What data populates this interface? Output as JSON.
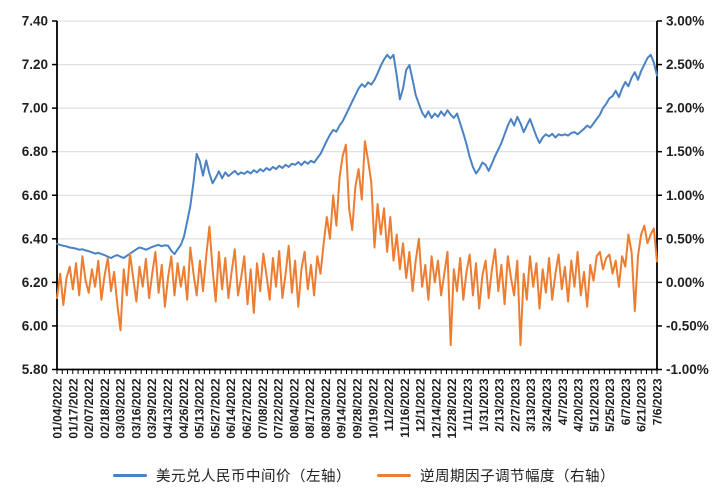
{
  "colors": {
    "series_blue": "#4a82c4",
    "series_orange": "#ED7D31",
    "gridline": "#d9d9d9",
    "axis": "#000000",
    "tick_text": "#1f1f1f"
  },
  "chart_data": {
    "type": "line",
    "title": "",
    "xlabel": "",
    "ylabel_left": "",
    "ylabel_right": "",
    "grid": true,
    "legend_position": "bottom",
    "left_axis": {
      "min": 5.8,
      "max": 7.4,
      "tick_labels": [
        "7.40",
        "7.20",
        "7.00",
        "6.80",
        "6.60",
        "6.40",
        "6.20",
        "6.00",
        "5.80"
      ]
    },
    "right_axis": {
      "min": -1.0,
      "max": 3.0,
      "tick_labels": [
        "3.00%",
        "2.50%",
        "2.00%",
        "1.50%",
        "1.00%",
        "0.50%",
        "0.00%",
        "-0.50%",
        "-1.00%"
      ]
    },
    "x_tick_labels": [
      "01/04/2022",
      "01/17/2022",
      "02/07/2022",
      "02/18/2022",
      "03/03/2022",
      "03/16/2022",
      "03/29/2022",
      "04/13/2022",
      "04/26/2022",
      "05/13/2022",
      "05/27/2022",
      "06/14/2022",
      "06/27/2022",
      "07/08/2022",
      "07/22/2022",
      "08/04/2022",
      "08/17/2022",
      "08/30/2022",
      "09/14/2022",
      "09/28/2022",
      "10/19/2022",
      "11/2/2022",
      "11/16/2022",
      "12/1/2022",
      "12/14/2022",
      "12/28/2022",
      "1/11/2023",
      "1/31/2023",
      "2/13/2023",
      "2/27/2023",
      "3/13/2023",
      "3/24/2023",
      "4/7/2023",
      "4/20/2023",
      "5/12/2023",
      "5/25/2023",
      "6/7/2023",
      "6/21/2023",
      "7/6/2023"
    ],
    "series": [
      {
        "name": "美元兑人民币中间价（左轴）",
        "axis": "left",
        "color": "#4a82c4",
        "values": [
          6.377,
          6.372,
          6.368,
          6.365,
          6.36,
          6.358,
          6.355,
          6.35,
          6.352,
          6.347,
          6.343,
          6.338,
          6.332,
          6.336,
          6.33,
          6.325,
          6.318,
          6.312,
          6.32,
          6.325,
          6.318,
          6.312,
          6.322,
          6.332,
          6.342,
          6.352,
          6.36,
          6.356,
          6.35,
          6.356,
          6.363,
          6.368,
          6.372,
          6.366,
          6.37,
          6.368,
          6.345,
          6.33,
          6.352,
          6.372,
          6.41,
          6.48,
          6.55,
          6.66,
          6.79,
          6.755,
          6.69,
          6.76,
          6.7,
          6.655,
          6.68,
          6.71,
          6.678,
          6.705,
          6.688,
          6.7,
          6.712,
          6.695,
          6.705,
          6.698,
          6.71,
          6.7,
          6.715,
          6.705,
          6.72,
          6.71,
          6.725,
          6.715,
          6.73,
          6.72,
          6.735,
          6.725,
          6.74,
          6.73,
          6.745,
          6.74,
          6.752,
          6.738,
          6.755,
          6.745,
          6.758,
          6.75,
          6.77,
          6.79,
          6.82,
          6.85,
          6.878,
          6.9,
          6.892,
          6.92,
          6.94,
          6.97,
          7.0,
          7.03,
          7.06,
          7.09,
          7.11,
          7.098,
          7.118,
          7.108,
          7.13,
          7.16,
          7.195,
          7.223,
          7.245,
          7.228,
          7.245,
          7.15,
          7.04,
          7.09,
          7.175,
          7.198,
          7.13,
          7.06,
          7.02,
          6.98,
          6.958,
          6.985,
          6.955,
          6.975,
          6.96,
          6.985,
          6.965,
          6.99,
          6.97,
          6.955,
          6.975,
          6.93,
          6.885,
          6.835,
          6.775,
          6.73,
          6.7,
          6.72,
          6.75,
          6.74,
          6.712,
          6.745,
          6.78,
          6.81,
          6.84,
          6.88,
          6.92,
          6.95,
          6.92,
          6.96,
          6.93,
          6.89,
          6.92,
          6.95,
          6.91,
          6.87,
          6.84,
          6.865,
          6.88,
          6.87,
          6.882,
          6.865,
          6.88,
          6.875,
          6.88,
          6.874,
          6.886,
          6.89,
          6.88,
          6.892,
          6.905,
          6.92,
          6.91,
          6.93,
          6.95,
          6.97,
          7.0,
          7.02,
          7.045,
          7.055,
          7.08,
          7.05,
          7.09,
          7.12,
          7.1,
          7.14,
          7.165,
          7.13,
          7.17,
          7.2,
          7.23,
          7.245,
          7.21,
          7.15
        ]
      },
      {
        "name": "逆周期因子调节幅度（右轴）",
        "axis": "right",
        "color": "#ED7D31",
        "values": [
          -0.18,
          0.1,
          -0.26,
          0.05,
          0.18,
          -0.08,
          0.22,
          -0.15,
          0.3,
          0.02,
          -0.12,
          0.15,
          -0.05,
          0.25,
          -0.2,
          0.08,
          0.28,
          -0.1,
          0.12,
          -0.25,
          -0.55,
          0.15,
          -0.15,
          0.33,
          0.05,
          -0.22,
          0.18,
          -0.05,
          0.27,
          -0.18,
          0.1,
          0.35,
          -0.12,
          0.2,
          -0.28,
          0.06,
          0.3,
          -0.15,
          0.22,
          -0.05,
          0.18,
          -0.2,
          0.4,
          0.1,
          -0.15,
          0.25,
          -0.1,
          0.3,
          0.64,
          0.15,
          -0.22,
          0.35,
          -0.08,
          0.28,
          -0.18,
          0.12,
          0.38,
          -0.15,
          0.05,
          0.3,
          -0.25,
          0.15,
          -0.35,
          0.22,
          -0.1,
          0.33,
          0.08,
          -0.2,
          0.28,
          -0.05,
          0.36,
          -0.18,
          0.1,
          0.42,
          -0.12,
          0.25,
          -0.28,
          0.15,
          0.35,
          -0.08,
          0.2,
          -0.15,
          0.3,
          0.1,
          0.45,
          0.75,
          0.5,
          1.0,
          0.65,
          1.2,
          1.45,
          1.58,
          0.85,
          0.6,
          1.1,
          1.3,
          0.95,
          1.62,
          1.4,
          1.15,
          0.4,
          0.9,
          0.55,
          0.85,
          0.35,
          0.75,
          0.25,
          0.55,
          0.15,
          0.45,
          0.05,
          0.35,
          -0.1,
          0.25,
          0.5,
          -0.05,
          0.2,
          -0.2,
          0.3,
          0.0,
          0.25,
          -0.15,
          0.1,
          0.35,
          -0.72,
          0.15,
          -0.1,
          0.28,
          -0.2,
          0.12,
          0.32,
          -0.15,
          0.22,
          -0.3,
          0.08,
          0.25,
          -0.18,
          0.15,
          0.38,
          -0.1,
          0.2,
          -0.25,
          0.3,
          0.05,
          -0.15,
          0.25,
          -0.72,
          0.1,
          -0.2,
          0.3,
          -0.05,
          0.22,
          -0.3,
          0.15,
          -0.12,
          0.28,
          -0.2,
          0.1,
          0.32,
          -0.08,
          0.18,
          -0.22,
          0.25,
          -0.05,
          0.35,
          -0.15,
          0.12,
          -0.28,
          0.2,
          0.02,
          0.3,
          0.35,
          0.15,
          0.28,
          0.32,
          0.1,
          0.25,
          -0.05,
          0.3,
          0.18,
          0.55,
          0.35,
          -0.33,
          0.3,
          0.55,
          0.65,
          0.45,
          0.55,
          0.62,
          0.24
        ]
      }
    ]
  }
}
